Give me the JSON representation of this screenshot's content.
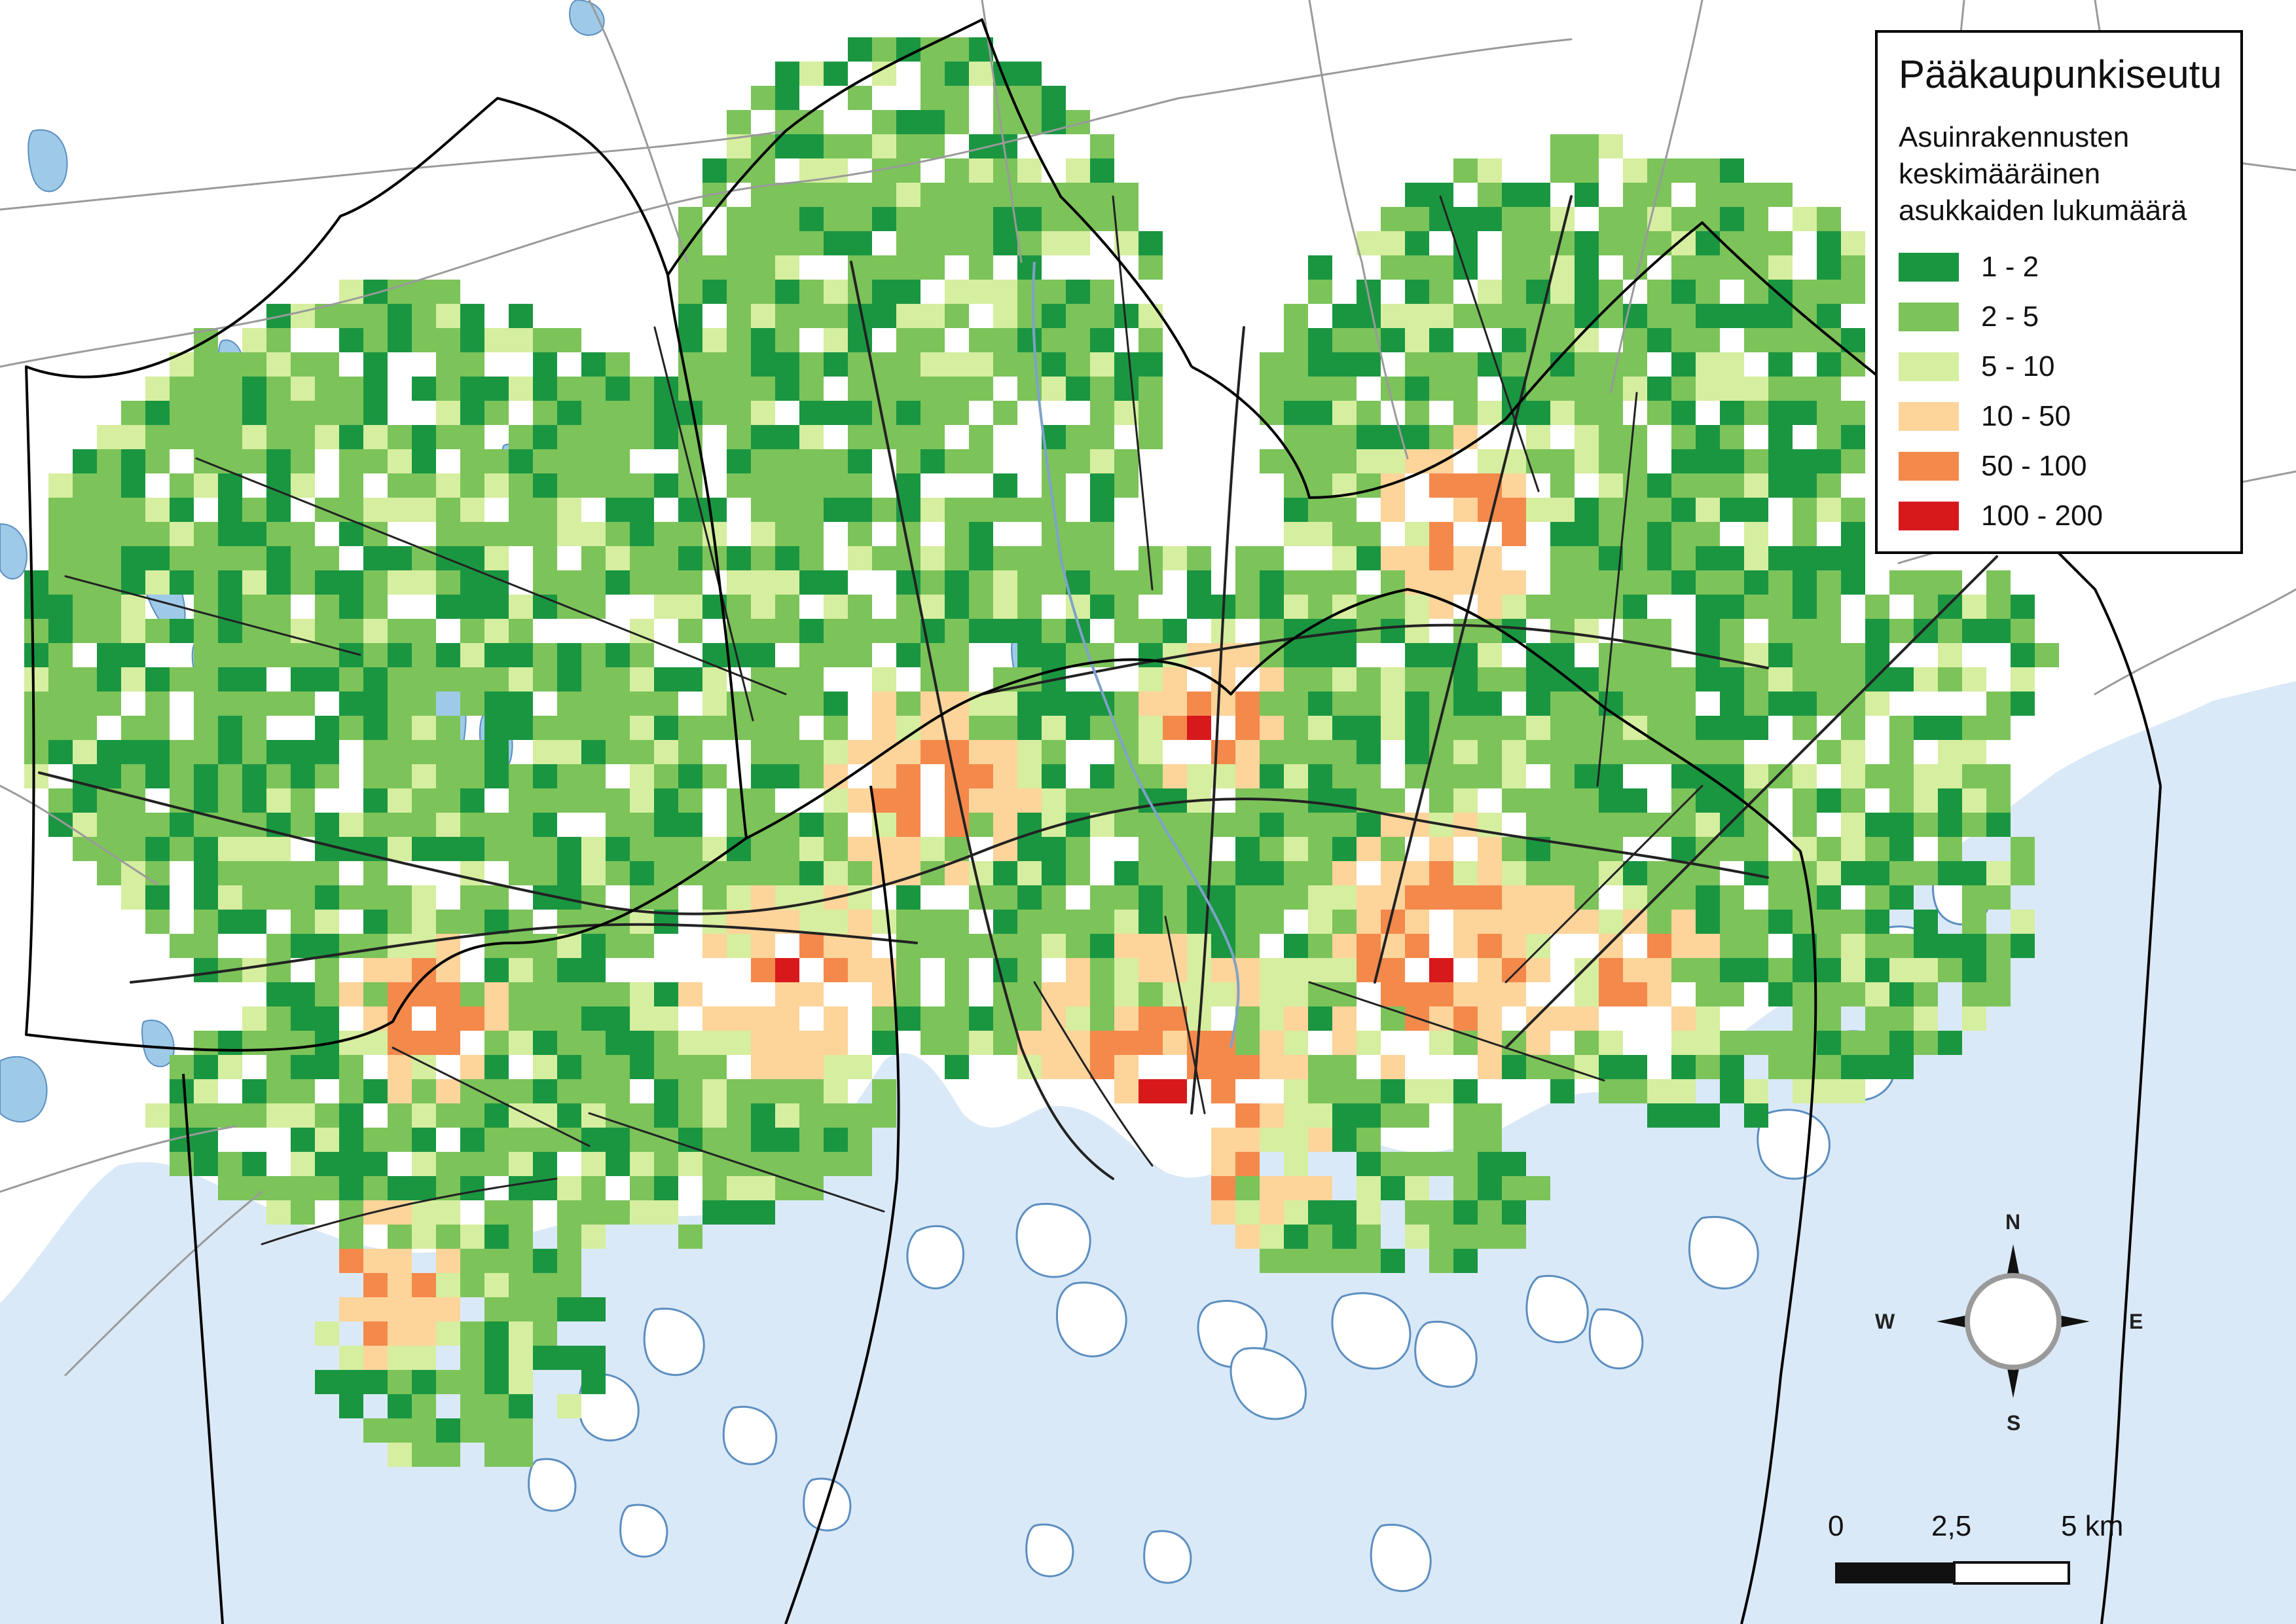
{
  "legend": {
    "title": "Pääkaupunkiseutu",
    "subtitle": "Asuinrakennusten keskimääräinen asukkaiden lukumäärä",
    "classes": [
      {
        "label": "1 - 2",
        "color": "#1a9641"
      },
      {
        "label": "2 - 5",
        "color": "#7cc35a"
      },
      {
        "label": "5 - 10",
        "color": "#d6ee9f"
      },
      {
        "label": "10 - 50",
        "color": "#fdd49a"
      },
      {
        "label": "50 - 100",
        "color": "#f4894c"
      },
      {
        "label": "100 - 200",
        "color": "#d7191c"
      }
    ]
  },
  "compass": {
    "n": "N",
    "e": "E",
    "s": "S",
    "w": "W"
  },
  "scale_bar": {
    "labels": [
      "0",
      "2,5",
      "5 km"
    ]
  },
  "map_colors": {
    "sea": "#dae9f8",
    "lake": "#9ecae8",
    "land": "#ffffff",
    "road": "#222222",
    "minor_road": "#9a9a9a",
    "boundary": "#000000",
    "river": "#7fa2c8"
  }
}
